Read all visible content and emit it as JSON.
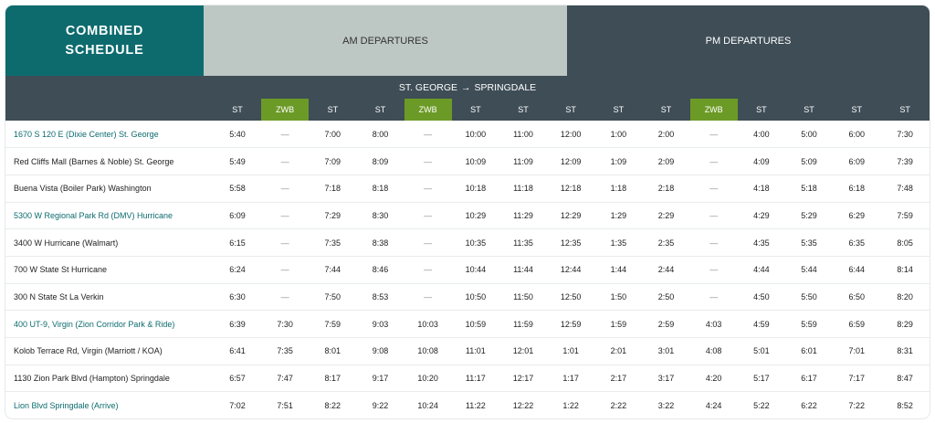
{
  "tabs": {
    "combined_line1": "COMBINED",
    "combined_line2": "SCHEDULE",
    "am": "AM DEPARTURES",
    "pm": "PM DEPARTURES"
  },
  "route": {
    "from": "ST. GEORGE",
    "arrow": "→",
    "to": "SPRINGDALE"
  },
  "columns": [
    "ST",
    "ZWB",
    "ST",
    "ST",
    "ZWB",
    "ST",
    "ST",
    "ST",
    "ST",
    "ST",
    "ZWB",
    "ST",
    "ST",
    "ST",
    "ST"
  ],
  "rows": [
    {
      "stop": "1670 S 120 E (Dixie Center) St. George",
      "times": [
        "5:40",
        "—",
        "7:00",
        "8:00",
        "—",
        "10:00",
        "11:00",
        "12:00",
        "1:00",
        "2:00",
        "—",
        "4:00",
        "5:00",
        "6:00",
        "7:30"
      ]
    },
    {
      "stop": "Red Cliffs Mall (Barnes & Noble) St. George",
      "times": [
        "5:49",
        "—",
        "7:09",
        "8:09",
        "—",
        "10:09",
        "11:09",
        "12:09",
        "1:09",
        "2:09",
        "—",
        "4:09",
        "5:09",
        "6:09",
        "7:39"
      ]
    },
    {
      "stop": "Buena Vista (Boiler Park) Washington",
      "times": [
        "5:58",
        "—",
        "7:18",
        "8:18",
        "—",
        "10:18",
        "11:18",
        "12:18",
        "1:18",
        "2:18",
        "—",
        "4:18",
        "5:18",
        "6:18",
        "7:48"
      ]
    },
    {
      "stop": "5300 W Regional Park Rd (DMV) Hurricane",
      "times": [
        "6:09",
        "—",
        "7:29",
        "8:30",
        "—",
        "10:29",
        "11:29",
        "12:29",
        "1:29",
        "2:29",
        "—",
        "4:29",
        "5:29",
        "6:29",
        "7:59"
      ]
    },
    {
      "stop": "3400 W Hurricane (Walmart)",
      "times": [
        "6:15",
        "—",
        "7:35",
        "8:38",
        "—",
        "10:35",
        "11:35",
        "12:35",
        "1:35",
        "2:35",
        "—",
        "4:35",
        "5:35",
        "6:35",
        "8:05"
      ]
    },
    {
      "stop": "700 W State St Hurricane",
      "times": [
        "6:24",
        "—",
        "7:44",
        "8:46",
        "—",
        "10:44",
        "11:44",
        "12:44",
        "1:44",
        "2:44",
        "—",
        "4:44",
        "5:44",
        "6:44",
        "8:14"
      ]
    },
    {
      "stop": "300 N State St La Verkin",
      "times": [
        "6:30",
        "—",
        "7:50",
        "8:53",
        "—",
        "10:50",
        "11:50",
        "12:50",
        "1:50",
        "2:50",
        "—",
        "4:50",
        "5:50",
        "6:50",
        "8:20"
      ]
    },
    {
      "stop": "400 UT-9, Virgin (Zion Corridor Park & Ride)",
      "times": [
        "6:39",
        "7:30",
        "7:59",
        "9:03",
        "10:03",
        "10:59",
        "11:59",
        "12:59",
        "1:59",
        "2:59",
        "4:03",
        "4:59",
        "5:59",
        "6:59",
        "8:29"
      ]
    },
    {
      "stop": "Kolob Terrace Rd, Virgin (Marriott / KOA)",
      "times": [
        "6:41",
        "7:35",
        "8:01",
        "9:08",
        "10:08",
        "11:01",
        "12:01",
        "1:01",
        "2:01",
        "3:01",
        "4:08",
        "5:01",
        "6:01",
        "7:01",
        "8:31"
      ]
    },
    {
      "stop": "1130 Zion Park Blvd (Hampton) Springdale",
      "times": [
        "6:57",
        "7:47",
        "8:17",
        "9:17",
        "10:20",
        "11:17",
        "12:17",
        "1:17",
        "2:17",
        "3:17",
        "4:20",
        "5:17",
        "6:17",
        "7:17",
        "8:47"
      ]
    },
    {
      "stop": "Lion Blvd Springdale (Arrive)",
      "times": [
        "7:02",
        "7:51",
        "8:22",
        "9:22",
        "10:24",
        "11:22",
        "12:22",
        "1:22",
        "2:22",
        "3:22",
        "4:24",
        "5:22",
        "6:22",
        "7:22",
        "8:52"
      ]
    }
  ],
  "colors": {
    "teal": "#0d6b6e",
    "slate": "#3e4d56",
    "sage": "#bdc8c5",
    "green": "#6c9a26"
  }
}
